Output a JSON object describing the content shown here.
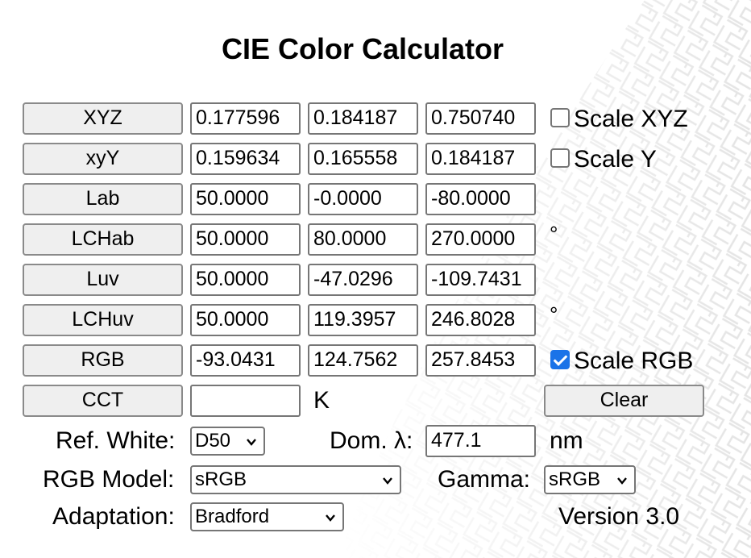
{
  "title": "CIE Color Calculator",
  "rows": [
    {
      "label": "XYZ",
      "v1": "0.177596",
      "v2": "0.184187",
      "v3": "0.750740"
    },
    {
      "label": "xyY",
      "v1": "0.159634",
      "v2": "0.165558",
      "v3": "0.184187"
    },
    {
      "label": "Lab",
      "v1": "50.0000",
      "v2": "-0.0000",
      "v3": "-80.0000"
    },
    {
      "label": "LCHab",
      "v1": "50.0000",
      "v2": "80.0000",
      "v3": "270.0000"
    },
    {
      "label": "Luv",
      "v1": "50.0000",
      "v2": "-47.0296",
      "v3": "-109.7431"
    },
    {
      "label": "LCHuv",
      "v1": "50.0000",
      "v2": "119.3957",
      "v3": "246.8028"
    },
    {
      "label": "RGB",
      "v1": "-93.0431",
      "v2": "124.7562",
      "v3": "257.8453"
    }
  ],
  "checks": {
    "scale_xyz": {
      "label": "Scale XYZ",
      "checked": false
    },
    "scale_y": {
      "label": "Scale Y",
      "checked": false
    },
    "scale_rgb": {
      "label": "Scale RGB",
      "checked": true
    }
  },
  "degree_symbol": "°",
  "cct": {
    "label": "CCT",
    "value": "",
    "unit": "K"
  },
  "clear_label": "Clear",
  "ref_white": {
    "label": "Ref. White:",
    "value": "D50"
  },
  "dominant": {
    "label": "Dom. λ:",
    "value": "477.1",
    "unit": "nm"
  },
  "rgb_model": {
    "label": "RGB Model:",
    "value": "sRGB"
  },
  "gamma": {
    "label": "Gamma:",
    "value": "sRGB"
  },
  "adaptation": {
    "label": "Adaptation:",
    "value": "Bradford"
  },
  "version": "Version 3.0",
  "colors": {
    "checkbox_on": "#1a73e8",
    "button_bg": "#efefef",
    "pattern": "#e4e4e4"
  }
}
